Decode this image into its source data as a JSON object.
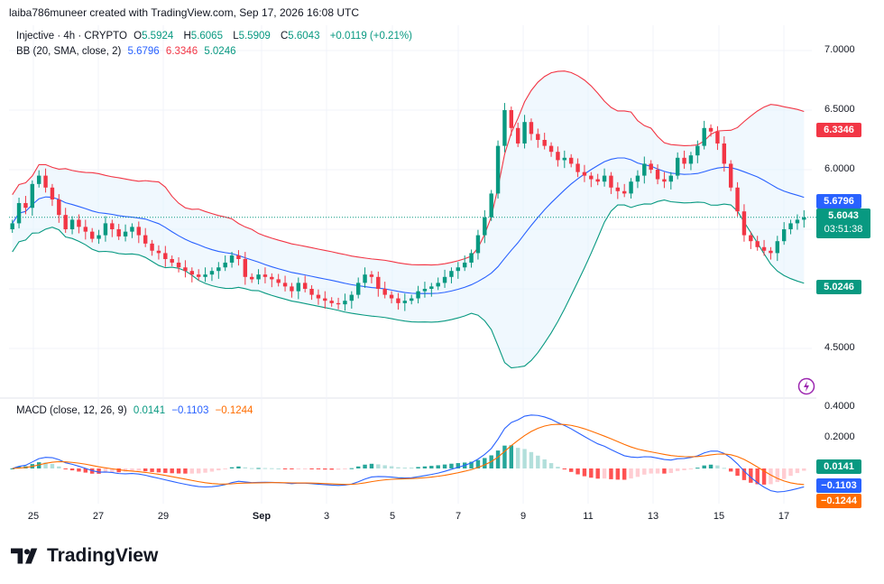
{
  "header": {
    "credit": "laiba786muneer created with TradingView.com, Sep 17, 2026 16:08 UTC"
  },
  "legend": {
    "symbol": "Injective · 4h · CRYPTO",
    "o_label": "O",
    "o_value": "5.5924",
    "h_label": "H",
    "h_value": "5.6065",
    "l_label": "L",
    "l_value": "5.5909",
    "c_label": "C",
    "c_value": "5.6043",
    "change": "+0.0119 (+0.21%)",
    "bb_label": "BB (20, SMA, close, 2)",
    "bb_basis": "5.6796",
    "bb_upper": "6.3346",
    "bb_lower": "5.0246",
    "macd_label": "MACD (close, 12, 26, 9)",
    "macd_hist": "0.0141",
    "macd_line": "−0.1103",
    "macd_signal": "−0.1244"
  },
  "price_tag": {
    "price": "5.6043",
    "countdown": "03:51:38"
  },
  "tags": {
    "upper": "6.3346",
    "basis": "5.6796",
    "lower": "5.0246",
    "hist": "0.0141",
    "macd": "−0.1103",
    "signal": "−0.1244"
  },
  "brand": {
    "name": "TradingView"
  },
  "colors": {
    "up": "#089981",
    "down": "#f23645",
    "basis": "#2962ff",
    "upper": "#f23645",
    "lower": "#089981",
    "macd": "#2962ff",
    "signal": "#ff6d00",
    "band_fill": "#e3f2fd"
  },
  "icons": {
    "logo": "tradingview-logo-icon",
    "alert": "alert-icon"
  },
  "chart_data": [
    {
      "type": "candlestick",
      "interval": "4h",
      "y_ticks": [
        "7.0000",
        "6.5000",
        "6.0000",
        "5.5000",
        "5.0000",
        "4.5000"
      ],
      "ylim": [
        4.3,
        7.1
      ],
      "x_ticks": [
        "25",
        "27",
        "29",
        "Sep",
        "3",
        "5",
        "7",
        "9",
        "11",
        "13",
        "15",
        "17"
      ],
      "close": [
        5.55,
        5.72,
        5.68,
        5.88,
        5.95,
        5.85,
        5.75,
        5.62,
        5.5,
        5.58,
        5.52,
        5.48,
        5.42,
        5.45,
        5.55,
        5.5,
        5.44,
        5.48,
        5.52,
        5.45,
        5.38,
        5.32,
        5.3,
        5.25,
        5.22,
        5.18,
        5.15,
        5.12,
        5.1,
        5.12,
        5.15,
        5.18,
        5.22,
        5.28,
        5.25,
        5.1,
        5.08,
        5.12,
        5.1,
        5.08,
        5.05,
        5.02,
        4.98,
        5.05,
        5.0,
        4.95,
        4.92,
        4.9,
        4.88,
        4.87,
        4.9,
        4.95,
        5.05,
        5.12,
        5.1,
        5.0,
        4.95,
        4.92,
        4.88,
        4.9,
        4.92,
        4.98,
        5.0,
        5.02,
        5.05,
        5.1,
        5.15,
        5.18,
        5.22,
        5.3,
        5.45,
        5.6,
        5.8,
        6.2,
        6.5,
        6.35,
        6.22,
        6.4,
        6.3,
        6.25,
        6.2,
        6.15,
        6.08,
        6.1,
        6.05,
        5.98,
        5.95,
        5.92,
        5.9,
        5.95,
        5.85,
        5.82,
        5.8,
        5.9,
        5.95,
        6.05,
        6.0,
        5.92,
        5.9,
        5.95,
        6.1,
        6.05,
        6.12,
        6.2,
        6.35,
        6.32,
        6.22,
        6.05,
        5.85,
        5.65,
        5.45,
        5.4,
        5.35,
        5.32,
        5.3,
        5.4,
        5.5,
        5.55,
        5.58,
        5.6
      ],
      "bollinger": {
        "period": 20,
        "stddev": 2,
        "basis": 5.6796,
        "upper": 6.3346,
        "lower": 5.0246
      }
    },
    {
      "type": "macd",
      "params": [
        12,
        26,
        9
      ],
      "y_ticks": [
        "0.4000",
        "0.2000"
      ],
      "ylim": [
        -0.2,
        0.42
      ],
      "histogram": 0.0141,
      "macd": -0.1103,
      "signal": -0.1244
    }
  ]
}
